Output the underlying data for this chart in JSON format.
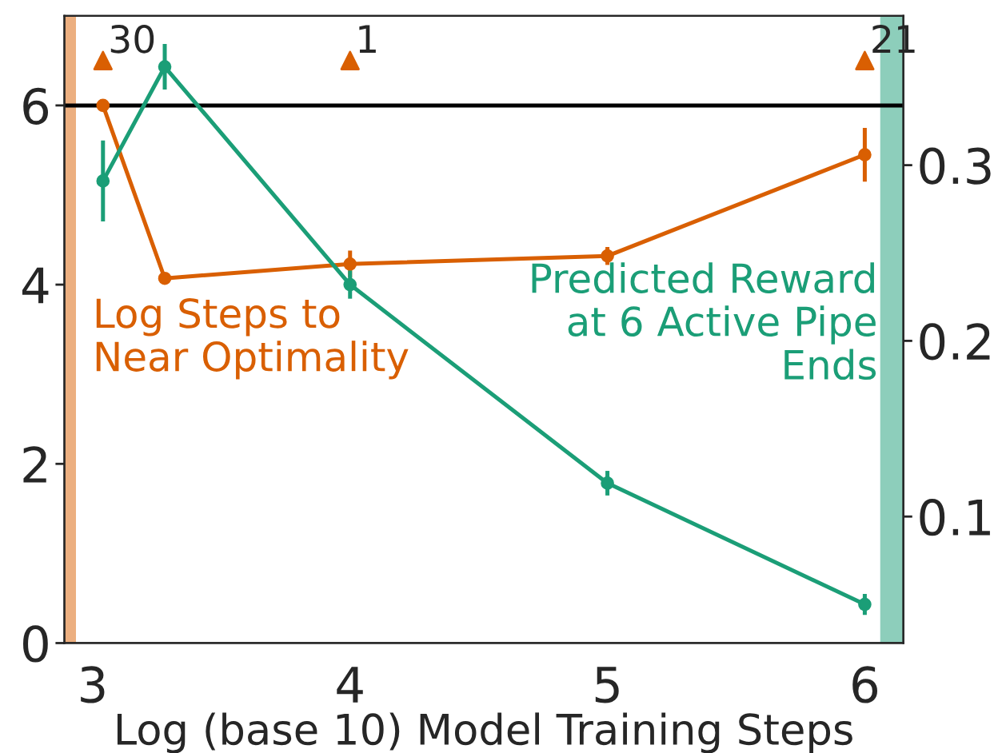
{
  "chart_data": {
    "type": "line",
    "xlabel": "Log (base 10) Model Training Steps",
    "xlim": [
      2.89,
      6.15
    ],
    "xticks": [
      3,
      4,
      5,
      6
    ],
    "ylim": [
      0,
      7
    ],
    "yticks": [
      0,
      2,
      4,
      6
    ],
    "y2lim": [
      0.028,
      0.385
    ],
    "y2ticks": [
      0.1,
      0.2,
      0.3
    ],
    "marker": "circle",
    "grid": false,
    "legend": false,
    "series": [
      {
        "name": "Log Steps to Near Optimality",
        "color": "#d95f02",
        "x": [
          3.04,
          3.28,
          4.0,
          5.0,
          6.0
        ],
        "values": [
          6.0,
          4.07,
          4.23,
          4.32,
          5.45
        ],
        "errors": [
          null,
          null,
          0.15,
          0.1,
          0.3
        ]
      },
      {
        "name": "Predicted Reward at 6 Active Pipe Ends",
        "color": "#1b9e77",
        "axis": "y2",
        "x": [
          3.04,
          3.28,
          4.0,
          5.0,
          6.0
        ],
        "values": [
          0.291,
          0.356,
          0.232,
          0.119,
          0.05
        ],
        "errors": [
          0.023,
          0.013,
          0.008,
          0.007,
          0.006
        ]
      },
      {
        "type": "scatter",
        "marker": "triangle",
        "color": "#d95f02",
        "x": [
          3.04,
          4.0,
          6.0
        ],
        "values": [
          6.5,
          6.5,
          6.5
        ]
      }
    ],
    "annotations": [
      {
        "text": "30",
        "x": 3.04,
        "y": 6.5
      },
      {
        "text": "1",
        "x": 4.0,
        "y": 6.5
      },
      {
        "text": "21",
        "x": 6.0,
        "y": 6.5
      }
    ],
    "ref_lines": [
      {
        "axis": "y",
        "value": 6,
        "color": "#000000"
      }
    ],
    "bands": [
      {
        "axis": "x",
        "from": 2.89,
        "to": 2.935,
        "color": "#d95f02"
      },
      {
        "axis": "x",
        "from": 6.06,
        "to": 6.15,
        "color": "#1b9e77"
      }
    ]
  }
}
